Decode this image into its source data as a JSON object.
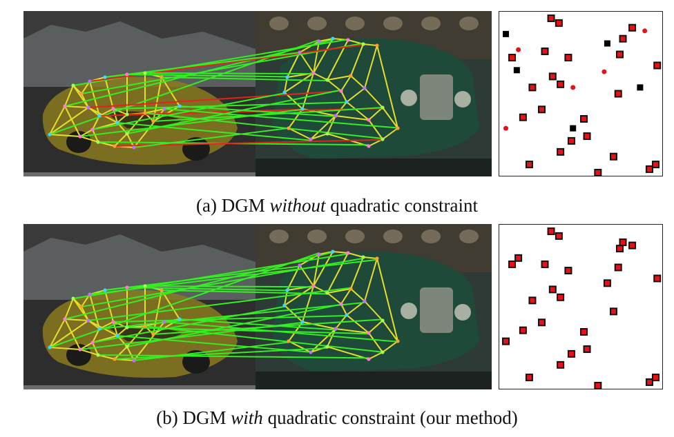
{
  "figure": {
    "panels": [
      {
        "id": "a",
        "caption": {
          "label": "(a)",
          "pre": "DGM",
          "emph": "without",
          "post": "quadratic constraint"
        },
        "matrix": {
          "correct": [
            [
              0.31,
              0.02
            ],
            [
              0.36,
              0.05
            ],
            [
              0.06,
              0.27
            ],
            [
              0.27,
              0.23
            ],
            [
              0.42,
              0.27
            ],
            [
              0.32,
              0.39
            ],
            [
              0.19,
              0.46
            ],
            [
              0.37,
              0.44
            ],
            [
              0.77,
              0.15
            ],
            [
              0.75,
              0.25
            ],
            [
              0.83,
              0.08
            ],
            [
              0.74,
              0.5
            ],
            [
              0.25,
              0.6
            ],
            [
              0.13,
              0.65
            ],
            [
              0.52,
              0.66
            ],
            [
              0.54,
              0.77
            ],
            [
              0.44,
              0.8
            ],
            [
              0.37,
              0.87
            ],
            [
              0.71,
              0.9
            ],
            [
              0.94,
              0.98
            ],
            [
              0.98,
              0.95
            ],
            [
              0.99,
              0.32
            ],
            [
              0.17,
              0.95
            ],
            [
              0.61,
              1.01
            ]
          ],
          "wrong": [
            [
              0.02,
              0.12
            ],
            [
              0.67,
              0.18
            ],
            [
              0.09,
              0.35
            ],
            [
              0.88,
              0.46
            ],
            [
              0.45,
              0.72
            ]
          ],
          "stray": [
            [
              0.1,
              0.22
            ],
            [
              0.91,
              0.1
            ],
            [
              0.65,
              0.36
            ],
            [
              0.45,
              0.46
            ],
            [
              0.02,
              0.72
            ]
          ]
        }
      },
      {
        "id": "b",
        "caption": {
          "label": "(b)",
          "pre": "DGM",
          "emph": "with",
          "post": "quadratic constraint (our method)"
        },
        "matrix": {
          "correct": [
            [
              0.31,
              0.02
            ],
            [
              0.36,
              0.05
            ],
            [
              0.06,
              0.23
            ],
            [
              0.1,
              0.19
            ],
            [
              0.27,
              0.23
            ],
            [
              0.42,
              0.27
            ],
            [
              0.32,
              0.39
            ],
            [
              0.19,
              0.46
            ],
            [
              0.37,
              0.44
            ],
            [
              0.77,
              0.09
            ],
            [
              0.75,
              0.13
            ],
            [
              0.83,
              0.11
            ],
            [
              0.74,
              0.25
            ],
            [
              0.67,
              0.35
            ],
            [
              0.25,
              0.6
            ],
            [
              0.13,
              0.65
            ],
            [
              0.52,
              0.66
            ],
            [
              0.54,
              0.77
            ],
            [
              0.44,
              0.8
            ],
            [
              0.37,
              0.87
            ],
            [
              0.71,
              0.53
            ],
            [
              0.94,
              0.98
            ],
            [
              0.98,
              0.95
            ],
            [
              0.99,
              0.32
            ],
            [
              0.17,
              0.95
            ],
            [
              0.61,
              1.01
            ],
            [
              0.02,
              0.72
            ]
          ],
          "wrong": [],
          "stray": []
        }
      }
    ],
    "colors": {
      "correct_match": "#33ee22",
      "wrong_match": "#e8221a",
      "graph_edge": "#e6df2a",
      "matrix_fill": "#e5121a",
      "matrix_border": "#111111",
      "wrong_cell": "#000000",
      "photo_left_bg": "#3a3b3a",
      "photo_right_bg": "#2d3a35"
    }
  }
}
